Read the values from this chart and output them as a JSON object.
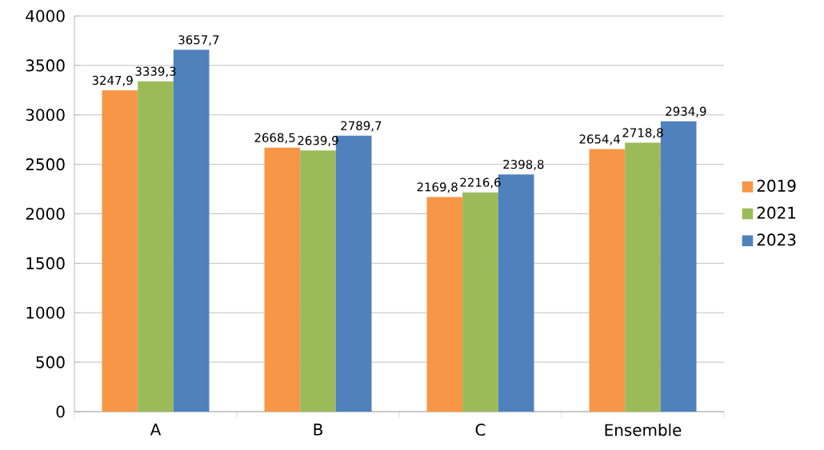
{
  "chart_data": {
    "type": "bar",
    "categories": [
      "A",
      "B",
      "C",
      "Ensemble"
    ],
    "series": [
      {
        "name": "2019",
        "color": "#f79646",
        "values": [
          3247.9,
          2668.5,
          2169.8,
          2654.4
        ],
        "value_labels": [
          "3247,9",
          "2668,5",
          "2169,8",
          "2654,4"
        ]
      },
      {
        "name": "2021",
        "color": "#9bbb59",
        "values": [
          3339.3,
          2639.9,
          2216.6,
          2718.8
        ],
        "value_labels": [
          "3339,3",
          "2639,9",
          "2216,6",
          "2718,8"
        ]
      },
      {
        "name": "2023",
        "color": "#4f81bd",
        "values": [
          3657.7,
          2789.7,
          2398.8,
          2934.9
        ],
        "value_labels": [
          "3657,7",
          "2789,7",
          "2398,8",
          "2934,9"
        ]
      }
    ],
    "ylim": [
      0,
      4000
    ],
    "yticks": [
      0,
      500,
      1000,
      1500,
      2000,
      2500,
      3000,
      3500,
      4000
    ],
    "grid": "y",
    "legend": "right"
  }
}
